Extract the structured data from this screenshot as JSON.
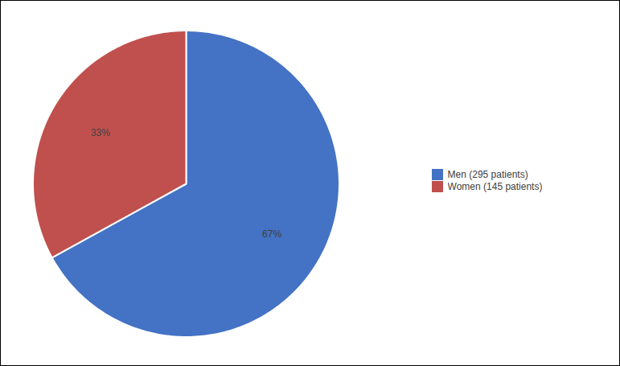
{
  "chart_data": {
    "type": "pie",
    "categories": [
      "Men (295 patients)",
      "Women (145 patients)"
    ],
    "values": [
      67,
      33
    ],
    "value_labels": [
      "67%",
      "33%"
    ],
    "colors": [
      "#4472C4",
      "#C0504D"
    ],
    "data_labels": true,
    "legend": "right"
  }
}
